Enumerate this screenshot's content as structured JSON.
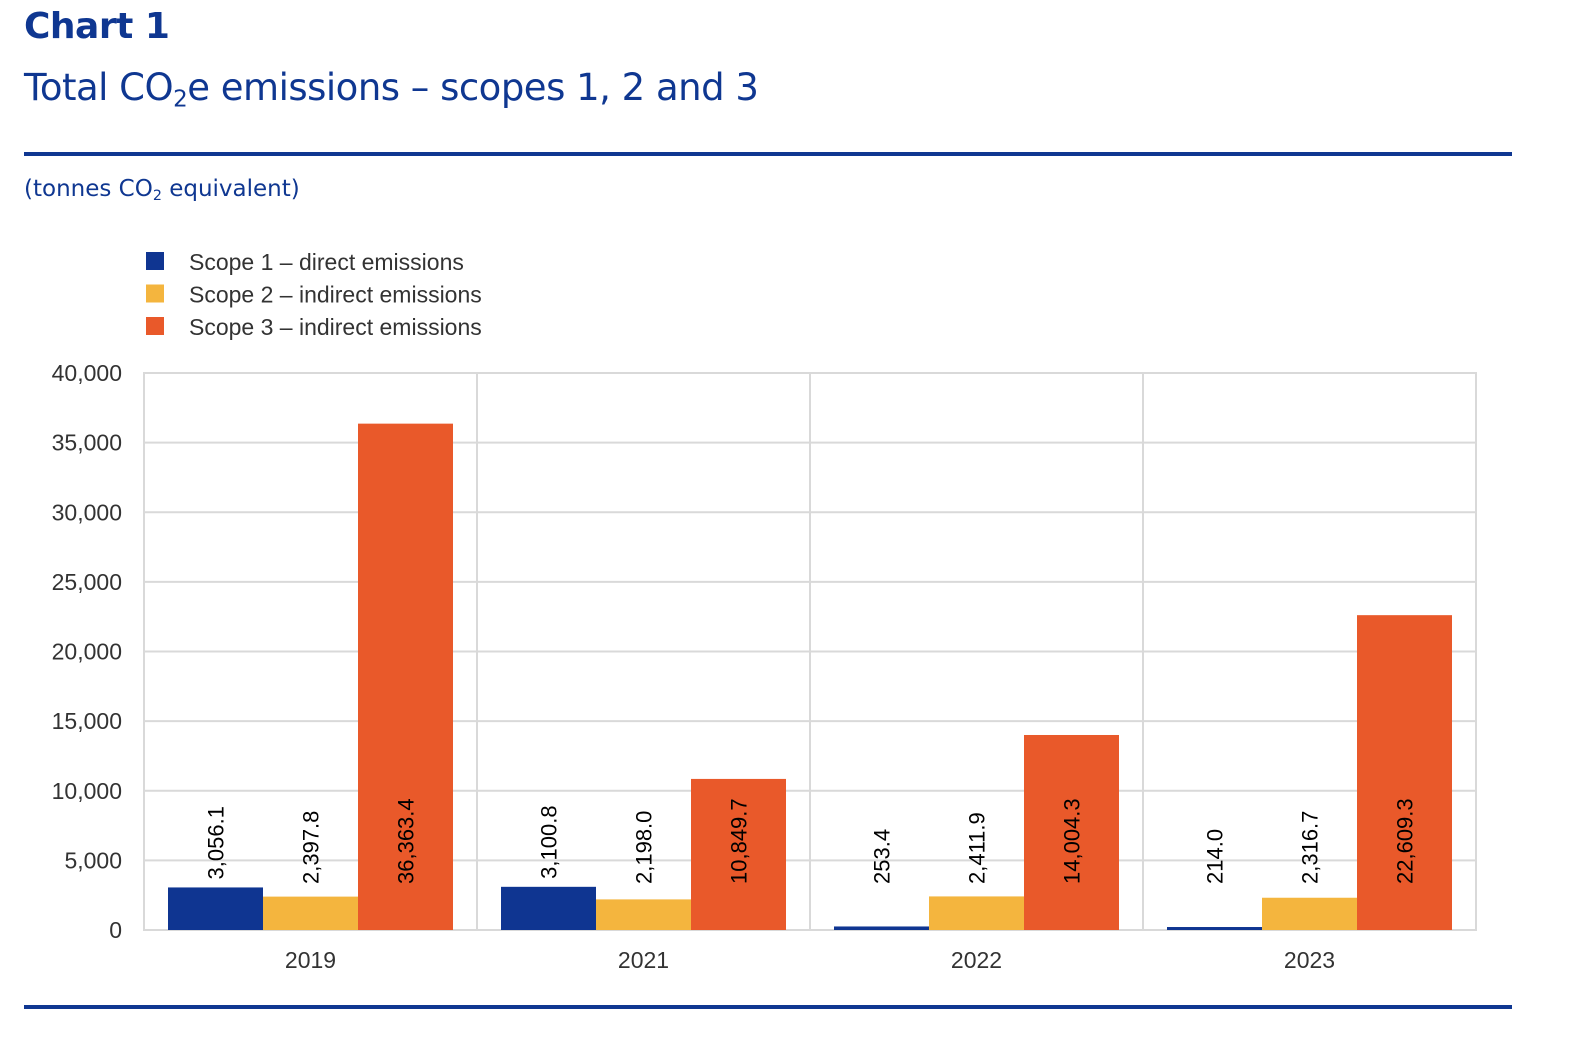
{
  "header": {
    "chart_label": "Chart 1",
    "title_pre": "Total CO",
    "title_sub": "2",
    "title_post": "e emissions – scopes 1, 2 and 3",
    "unit_pre": "(tonnes CO",
    "unit_sub": "2",
    "unit_post": " equivalent)"
  },
  "chart_data": {
    "type": "bar",
    "title": "Total CO2e emissions – scopes 1, 2 and 3",
    "subtitle": "(tonnes CO2 equivalent)",
    "xlabel": "",
    "ylabel": "tonnes CO2 equivalent",
    "categories": [
      "2019",
      "2021",
      "2022",
      "2023"
    ],
    "series": [
      {
        "name": "Scope 1 – direct emissions",
        "color": "#0f3591",
        "values": [
          3056.1,
          3100.8,
          253.4,
          214.0
        ],
        "labels": [
          "3,056.1",
          "3,100.8",
          "253.4",
          "214.0"
        ]
      },
      {
        "name": "Scope 2 – indirect emissions",
        "color": "#f4b53e",
        "values": [
          2397.8,
          2198.0,
          2411.9,
          2316.7
        ],
        "labels": [
          "2,397.8",
          "2,198.0",
          "2,411.9",
          "2,316.7"
        ]
      },
      {
        "name": "Scope 3 – indirect emissions",
        "color": "#e9592a",
        "values": [
          36363.4,
          10849.7,
          14004.3,
          22609.3
        ],
        "labels": [
          "36,363.4",
          "10,849.7",
          "14,004.3",
          "22,609.3"
        ]
      }
    ],
    "ylim": [
      0,
      40000
    ],
    "yticks": [
      0,
      5000,
      10000,
      15000,
      20000,
      25000,
      30000,
      35000,
      40000
    ],
    "ytick_labels": [
      "0",
      "5,000",
      "10,000",
      "15,000",
      "20,000",
      "25,000",
      "30,000",
      "35,000",
      "40,000"
    ],
    "grid": true,
    "legend_position": "top-left",
    "data_labels": "rotated-vertical"
  }
}
